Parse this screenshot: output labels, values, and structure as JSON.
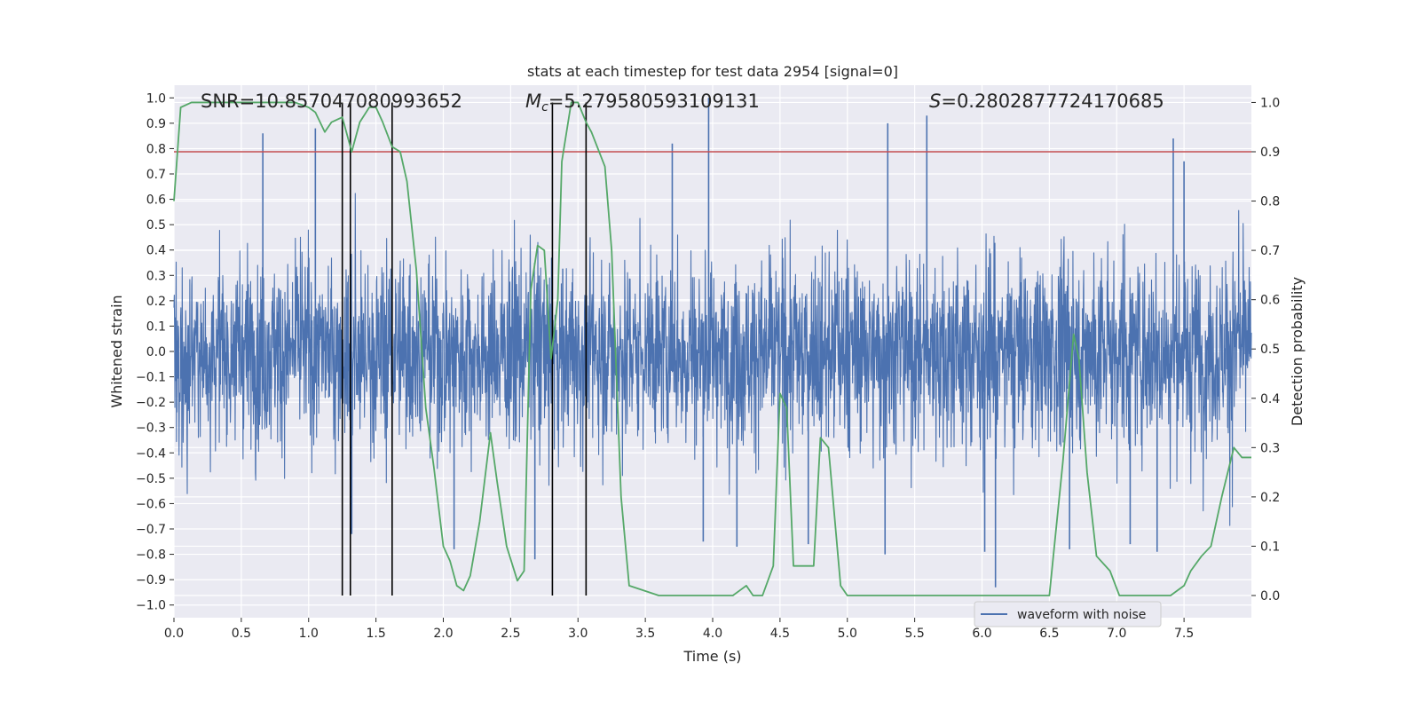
{
  "chart_data": {
    "type": "line",
    "title": "stats at each timestep for test data 2954 [signal=0]",
    "xlabel": "Time (s)",
    "ylabel_left": "Whitened strain",
    "ylabel_right": "Detection probability",
    "xlim": [
      0,
      8
    ],
    "ylim_left": [
      -1.05,
      1.05
    ],
    "ylim_right": [
      -0.045,
      1.035
    ],
    "x_ticks": [
      "0.0",
      "0.5",
      "1.0",
      "1.5",
      "2.0",
      "2.5",
      "3.0",
      "3.5",
      "4.0",
      "4.5",
      "5.0",
      "5.5",
      "6.0",
      "6.5",
      "7.0",
      "7.5"
    ],
    "y_ticks_left": [
      "-1.0",
      "-0.9",
      "-0.8",
      "-0.7",
      "-0.6",
      "-0.5",
      "-0.4",
      "-0.3",
      "-0.2",
      "-0.1",
      "0.0",
      "0.1",
      "0.2",
      "0.3",
      "0.4",
      "0.5",
      "0.6",
      "0.7",
      "0.8",
      "0.9",
      "1.0"
    ],
    "y_ticks_right": [
      "0.0",
      "0.1",
      "0.2",
      "0.3",
      "0.4",
      "0.5",
      "0.6",
      "0.7",
      "0.8",
      "0.9",
      "1.0"
    ],
    "grid": true,
    "legend_placement": "lower-center",
    "annotations": {
      "snr": "SNR=10.857047080993652",
      "mc_symbol": "M",
      "mc_sub": "c",
      "mc_value": "=5.279580593109131",
      "s_symbol": "S",
      "s_value": "=0.2802877724170685"
    },
    "series": [
      {
        "name": "waveform with noise",
        "axis": "left",
        "color": "#4c72b0",
        "kind": "noise",
        "typical_amplitude": 0.42,
        "spikes": [
          {
            "x": 0.66,
            "y": 0.86
          },
          {
            "x": 1.05,
            "y": 0.88
          },
          {
            "x": 1.32,
            "y": -0.72
          },
          {
            "x": 2.08,
            "y": -0.78
          },
          {
            "x": 2.68,
            "y": -0.82
          },
          {
            "x": 3.7,
            "y": 0.82
          },
          {
            "x": 3.93,
            "y": -0.75
          },
          {
            "x": 3.97,
            "y": 1.0
          },
          {
            "x": 4.18,
            "y": -0.77
          },
          {
            "x": 4.71,
            "y": -0.76
          },
          {
            "x": 5.28,
            "y": -0.8
          },
          {
            "x": 5.3,
            "y": 0.9
          },
          {
            "x": 5.59,
            "y": 0.93
          },
          {
            "x": 6.02,
            "y": -0.79
          },
          {
            "x": 6.1,
            "y": -0.93
          },
          {
            "x": 6.65,
            "y": -0.78
          },
          {
            "x": 7.1,
            "y": -0.76
          },
          {
            "x": 7.3,
            "y": -0.79
          },
          {
            "x": 7.42,
            "y": 0.84
          },
          {
            "x": 7.5,
            "y": 0.75
          }
        ]
      },
      {
        "name": "",
        "axis": "right",
        "color": "#55a868",
        "x": [
          0,
          0.05,
          0.13,
          0.3,
          0.6,
          0.9,
          1.0,
          1.05,
          1.12,
          1.17,
          1.25,
          1.32,
          1.38,
          1.45,
          1.5,
          1.55,
          1.62,
          1.68,
          1.73,
          1.8,
          1.87,
          1.93,
          2.0,
          2.05,
          2.1,
          2.15,
          2.2,
          2.27,
          2.35,
          2.4,
          2.47,
          2.55,
          2.6,
          2.65,
          2.7,
          2.75,
          2.8,
          2.85,
          2.88,
          2.95,
          3.0,
          3.06,
          3.1,
          3.2,
          3.25,
          3.32,
          3.38,
          3.6,
          4.0,
          4.15,
          4.2,
          4.25,
          4.3,
          4.37,
          4.45,
          4.5,
          4.55,
          4.6,
          4.67,
          4.75,
          4.8,
          4.86,
          4.95,
          5.0,
          5.2,
          5.6,
          6.0,
          6.3,
          6.5,
          6.6,
          6.68,
          6.72,
          6.78,
          6.85,
          6.95,
          7.02,
          7.1,
          7.4,
          7.5,
          7.55,
          7.63,
          7.7,
          7.78,
          7.87,
          7.93,
          8.0
        ],
        "y": [
          0.8,
          0.99,
          1.0,
          1.0,
          1.0,
          1.0,
          0.99,
          0.98,
          0.94,
          0.96,
          0.97,
          0.9,
          0.96,
          0.99,
          0.99,
          0.96,
          0.91,
          0.9,
          0.84,
          0.66,
          0.38,
          0.26,
          0.1,
          0.07,
          0.02,
          0.01,
          0.04,
          0.15,
          0.33,
          0.23,
          0.1,
          0.03,
          0.05,
          0.62,
          0.71,
          0.7,
          0.48,
          0.6,
          0.88,
          1.0,
          1.0,
          0.96,
          0.94,
          0.87,
          0.7,
          0.2,
          0.02,
          0.0,
          0.0,
          0.0,
          0.01,
          0.02,
          0.0,
          0.0,
          0.06,
          0.41,
          0.38,
          0.06,
          0.06,
          0.06,
          0.32,
          0.3,
          0.02,
          0.0,
          0.0,
          0.0,
          0.0,
          0.0,
          0.0,
          0.27,
          0.53,
          0.48,
          0.25,
          0.08,
          0.05,
          0.0,
          0.0,
          0.0,
          0.02,
          0.05,
          0.08,
          0.1,
          0.2,
          0.3,
          0.28,
          0.28
        ]
      }
    ],
    "hlines": [
      {
        "axis": "right",
        "y": 0.9,
        "color": "#c44e52"
      }
    ],
    "vlines": [
      {
        "x": 1.25,
        "ymax": 1.0,
        "color": "#000000"
      },
      {
        "x": 1.31,
        "ymax": 1.0,
        "color": "#000000"
      },
      {
        "x": 1.62,
        "ymax": 1.0,
        "color": "#000000"
      },
      {
        "x": 2.81,
        "ymax": 1.0,
        "color": "#000000"
      },
      {
        "x": 3.06,
        "ymax": 1.0,
        "color": "#000000"
      }
    ],
    "colors": {
      "plot_background": "#eaeaf2",
      "grid": "#ffffff"
    }
  }
}
